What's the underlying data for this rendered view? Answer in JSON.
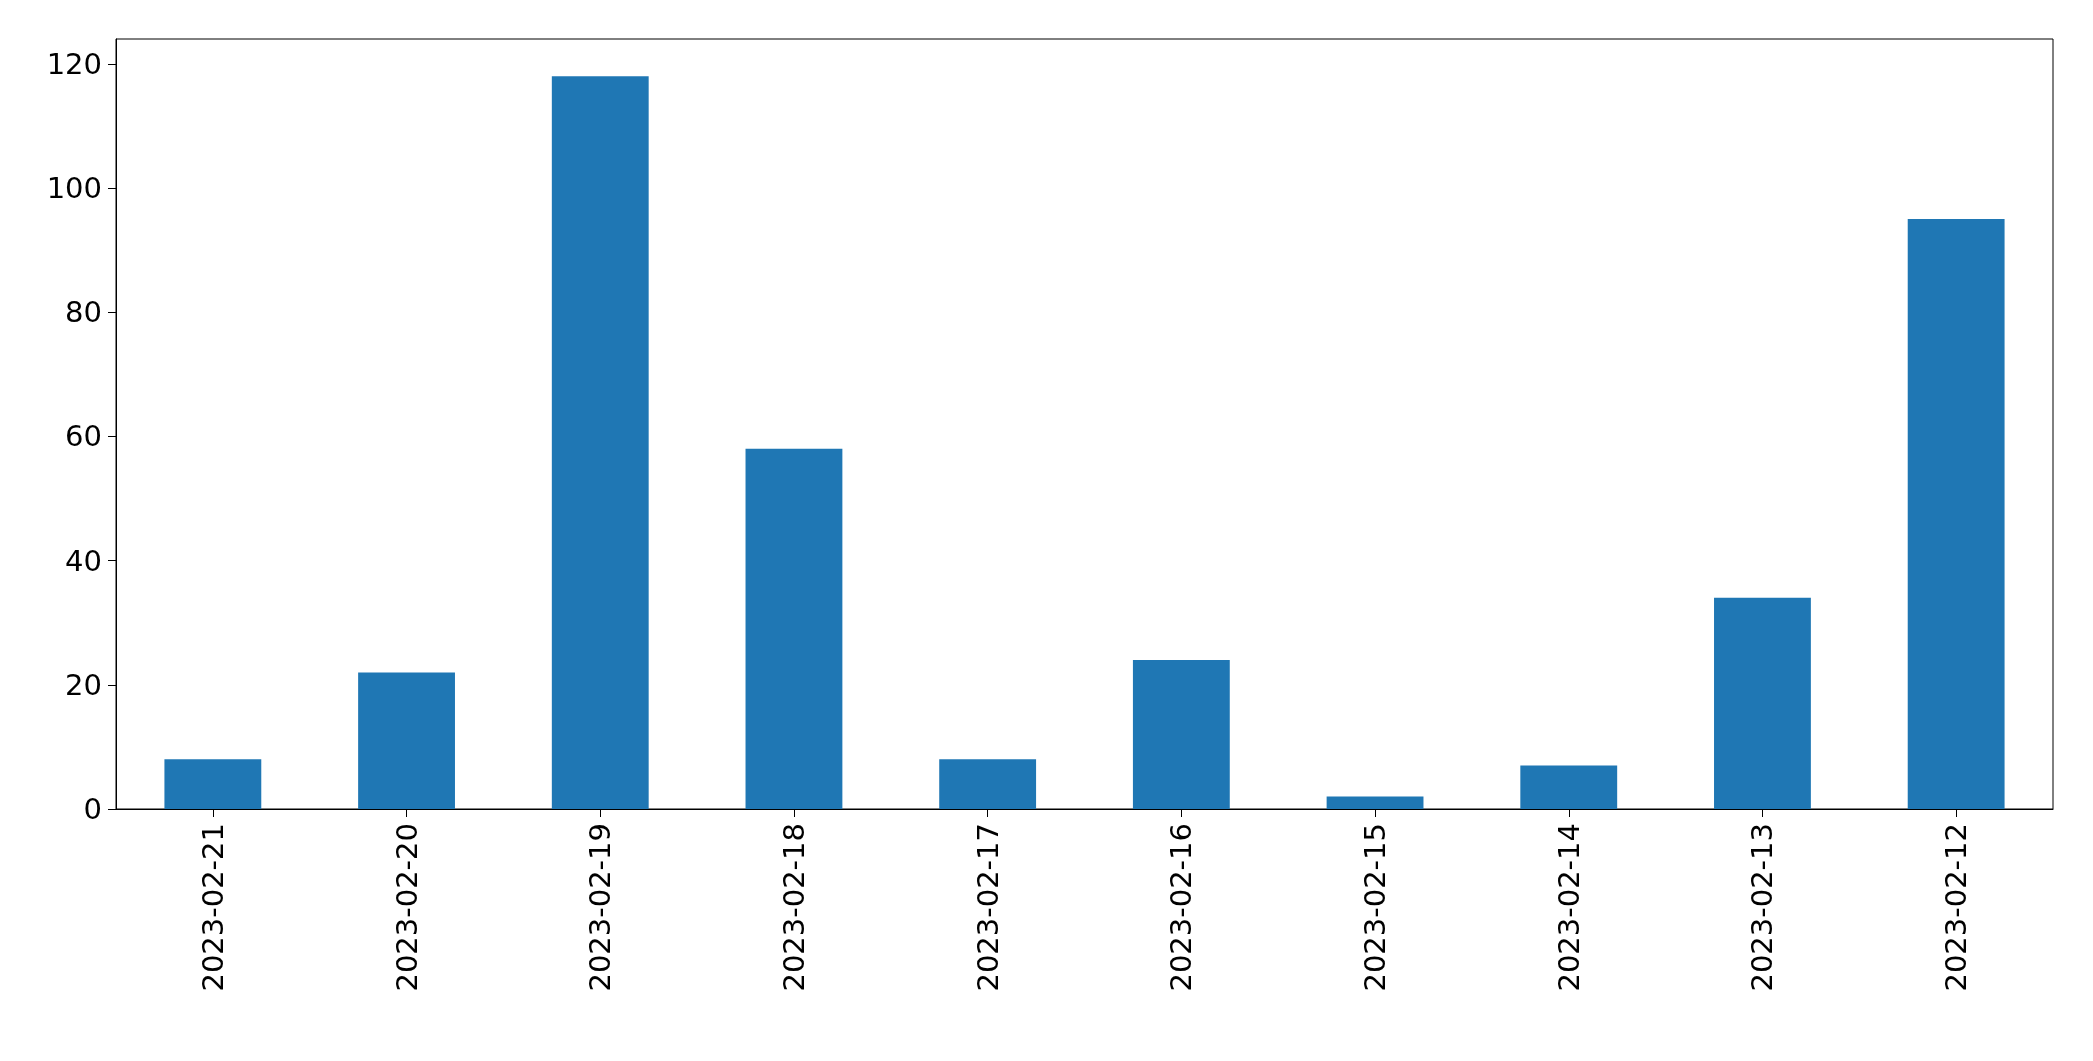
{
  "chart_data": {
    "type": "bar",
    "categories": [
      "2023-02-21",
      "2023-02-20",
      "2023-02-19",
      "2023-02-18",
      "2023-02-17",
      "2023-02-16",
      "2023-02-15",
      "2023-02-14",
      "2023-02-13",
      "2023-02-12"
    ],
    "values": [
      8,
      22,
      118,
      58,
      8,
      24,
      2,
      7,
      34,
      95
    ],
    "color": "#1f77b4",
    "ylim": [
      0,
      124
    ],
    "yticks": [
      0,
      20,
      40,
      60,
      80,
      100,
      120
    ]
  }
}
